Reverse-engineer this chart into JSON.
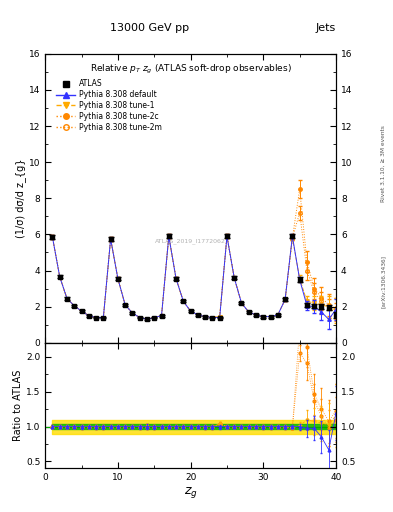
{
  "title_top": "13000 GeV pp",
  "title_right": "Jets",
  "plot_title": "Relative p_{T} z_{g} (ATLAS soft-drop observables)",
  "xlabel": "z_{g}",
  "ylabel_main": "(1/σ) dσ/d z_{g}",
  "ylabel_ratio": "Ratio to ATLAS",
  "right_label1": "Rivet 3.1.10, ≥ 3M events",
  "right_label2": "[arXiv:1306.3436]",
  "watermark": "ATLAS_2019_I1772062",
  "xmin": 0,
  "xmax": 40,
  "ymin_main": 0,
  "ymax_main": 16,
  "ymin_ratio": 0.4,
  "ymax_ratio": 2.2,
  "yticks_main": [
    0,
    2,
    4,
    6,
    8,
    10,
    12,
    14,
    16
  ],
  "yticks_ratio": [
    0.5,
    1.0,
    1.5,
    2.0
  ],
  "xticks": [
    0,
    10,
    20,
    30,
    40
  ],
  "atlas_color": "#000000",
  "default_color": "#3333ff",
  "tune1_color": "#ffaa00",
  "tune2c_color": "#ff8800",
  "tune2m_color": "#ff8800",
  "green_band_color": "#00bb00",
  "yellow_band_color": "#ffdd00",
  "background_color": "#ffffff",
  "x_data": [
    1,
    2,
    3,
    4,
    5,
    6,
    7,
    8,
    9,
    10,
    11,
    12,
    13,
    14,
    15,
    16,
    17,
    18,
    19,
    20,
    21,
    22,
    23,
    24,
    25,
    26,
    27,
    28,
    29,
    30,
    31,
    32,
    33,
    34,
    35,
    36,
    37,
    38,
    39,
    40
  ],
  "atlas_y": [
    5.85,
    3.65,
    2.45,
    2.05,
    1.75,
    1.5,
    1.4,
    1.4,
    5.75,
    3.55,
    2.1,
    1.65,
    1.4,
    1.3,
    1.4,
    1.5,
    5.9,
    3.55,
    2.3,
    1.75,
    1.55,
    1.45,
    1.4,
    1.4,
    5.9,
    3.6,
    2.2,
    1.7,
    1.55,
    1.45,
    1.45,
    1.55,
    2.4,
    5.9,
    3.5,
    2.1,
    2.05,
    2.0,
    1.95,
    1.55
  ],
  "atlas_yerr": [
    0.12,
    0.08,
    0.06,
    0.05,
    0.05,
    0.05,
    0.05,
    0.05,
    0.12,
    0.08,
    0.06,
    0.05,
    0.05,
    0.05,
    0.05,
    0.05,
    0.12,
    0.08,
    0.06,
    0.05,
    0.05,
    0.05,
    0.05,
    0.05,
    0.12,
    0.08,
    0.06,
    0.05,
    0.05,
    0.05,
    0.05,
    0.05,
    0.08,
    0.12,
    0.12,
    0.12,
    0.12,
    0.15,
    0.15,
    0.18
  ],
  "default_y": [
    5.85,
    3.65,
    2.45,
    2.05,
    1.75,
    1.5,
    1.4,
    1.4,
    5.75,
    3.55,
    2.1,
    1.65,
    1.4,
    1.3,
    1.4,
    1.5,
    5.9,
    3.55,
    2.3,
    1.75,
    1.55,
    1.45,
    1.4,
    1.4,
    5.9,
    3.6,
    2.2,
    1.7,
    1.55,
    1.45,
    1.45,
    1.55,
    2.4,
    5.9,
    3.5,
    2.05,
    2.0,
    1.7,
    1.3,
    1.85
  ],
  "default_yerr": [
    0.1,
    0.07,
    0.05,
    0.05,
    0.05,
    0.04,
    0.04,
    0.04,
    0.1,
    0.07,
    0.05,
    0.04,
    0.04,
    0.04,
    0.04,
    0.04,
    0.1,
    0.07,
    0.05,
    0.04,
    0.04,
    0.04,
    0.04,
    0.04,
    0.1,
    0.07,
    0.05,
    0.04,
    0.04,
    0.04,
    0.04,
    0.04,
    0.07,
    0.1,
    0.15,
    0.25,
    0.35,
    0.45,
    0.55,
    0.6
  ],
  "tune1_y": [
    5.85,
    3.65,
    2.45,
    2.05,
    1.75,
    1.5,
    1.4,
    1.4,
    5.75,
    3.55,
    2.1,
    1.65,
    1.4,
    1.3,
    1.4,
    1.5,
    5.9,
    3.55,
    2.3,
    1.75,
    1.55,
    1.45,
    1.4,
    1.45,
    5.9,
    3.6,
    2.2,
    1.7,
    1.55,
    1.45,
    1.45,
    1.55,
    2.4,
    5.8,
    3.55,
    2.3,
    2.2,
    2.1,
    2.0,
    1.8
  ],
  "tune1_yerr": [
    0.1,
    0.07,
    0.05,
    0.05,
    0.05,
    0.04,
    0.04,
    0.04,
    0.1,
    0.07,
    0.05,
    0.04,
    0.04,
    0.04,
    0.04,
    0.04,
    0.1,
    0.07,
    0.05,
    0.04,
    0.04,
    0.04,
    0.04,
    0.04,
    0.1,
    0.07,
    0.05,
    0.04,
    0.04,
    0.04,
    0.04,
    0.04,
    0.07,
    0.1,
    0.2,
    0.3,
    0.4,
    0.5,
    0.6,
    0.7
  ],
  "tune2c_y": [
    5.85,
    3.65,
    2.45,
    2.05,
    1.75,
    1.5,
    1.4,
    1.4,
    5.75,
    3.55,
    2.1,
    1.65,
    1.4,
    1.3,
    1.4,
    1.5,
    5.9,
    3.55,
    2.3,
    1.75,
    1.55,
    1.45,
    1.4,
    1.45,
    5.9,
    3.6,
    2.2,
    1.7,
    1.55,
    1.45,
    1.45,
    1.55,
    2.4,
    5.8,
    8.5,
    4.5,
    3.0,
    2.5,
    2.1,
    1.9
  ],
  "tune2c_yerr": [
    0.1,
    0.07,
    0.05,
    0.05,
    0.05,
    0.04,
    0.04,
    0.04,
    0.1,
    0.07,
    0.05,
    0.04,
    0.04,
    0.04,
    0.04,
    0.04,
    0.1,
    0.07,
    0.05,
    0.04,
    0.04,
    0.04,
    0.04,
    0.04,
    0.1,
    0.07,
    0.05,
    0.04,
    0.04,
    0.04,
    0.04,
    0.04,
    0.07,
    0.1,
    0.5,
    0.6,
    0.6,
    0.6,
    0.6,
    0.6
  ],
  "tune2m_y": [
    5.85,
    3.65,
    2.45,
    2.05,
    1.75,
    1.5,
    1.4,
    1.4,
    5.75,
    3.55,
    2.1,
    1.65,
    1.4,
    1.3,
    1.4,
    1.5,
    5.9,
    3.55,
    2.3,
    1.75,
    1.55,
    1.45,
    1.4,
    1.45,
    5.9,
    3.6,
    2.2,
    1.7,
    1.55,
    1.45,
    1.45,
    1.55,
    2.4,
    5.8,
    7.2,
    4.0,
    2.8,
    2.3,
    1.9,
    1.7
  ],
  "tune2m_yerr": [
    0.1,
    0.07,
    0.05,
    0.05,
    0.05,
    0.04,
    0.04,
    0.04,
    0.1,
    0.07,
    0.05,
    0.04,
    0.04,
    0.04,
    0.04,
    0.04,
    0.1,
    0.07,
    0.05,
    0.04,
    0.04,
    0.04,
    0.04,
    0.04,
    0.1,
    0.07,
    0.05,
    0.04,
    0.04,
    0.04,
    0.04,
    0.04,
    0.07,
    0.1,
    0.4,
    0.5,
    0.5,
    0.5,
    0.5,
    0.5
  ],
  "ratio_green_band": 0.04,
  "ratio_yellow_band": 0.1
}
